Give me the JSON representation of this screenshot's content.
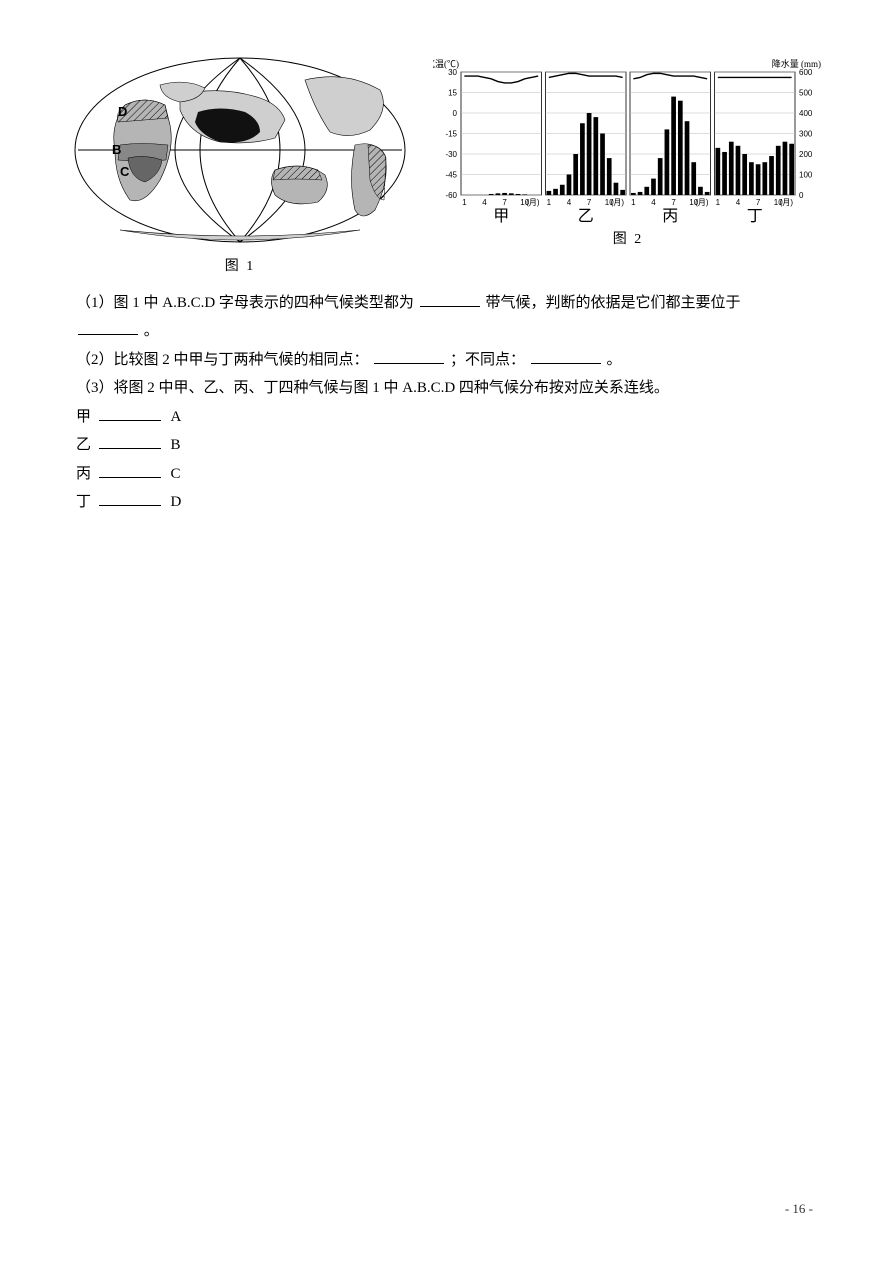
{
  "figure1": {
    "caption": "图 1",
    "labels": {
      "D": "D",
      "B": "B",
      "C": "C"
    }
  },
  "figure2": {
    "caption": "图 2",
    "axis_left_title": "气温(℃)",
    "axis_right_title": "降水量 (mm)",
    "y_temp_ticks": [
      30,
      15,
      0,
      -15,
      -30,
      -45,
      -60
    ],
    "y_temp_range": [
      -60,
      30
    ],
    "y_precip_ticks": [
      0,
      100,
      200,
      300,
      400,
      500,
      600
    ],
    "y_precip_range": [
      0,
      600
    ],
    "x_labels": [
      "1",
      "4",
      "7",
      "10",
      "(月)"
    ],
    "panels": [
      {
        "name": "甲",
        "temp": [
          27,
          27,
          27,
          26,
          25,
          23,
          22,
          22,
          23,
          25,
          26,
          27
        ],
        "precip": [
          0,
          0,
          0,
          0,
          5,
          8,
          10,
          8,
          5,
          3,
          0,
          0
        ]
      },
      {
        "name": "乙",
        "temp": [
          26,
          27,
          28,
          29,
          29,
          28,
          27,
          27,
          27,
          27,
          27,
          26
        ],
        "precip": [
          20,
          30,
          50,
          100,
          200,
          350,
          400,
          380,
          300,
          180,
          60,
          25
        ]
      },
      {
        "name": "丙",
        "temp": [
          25,
          26,
          28,
          29,
          29,
          28,
          27,
          27,
          27,
          27,
          26,
          25
        ],
        "precip": [
          10,
          15,
          40,
          80,
          180,
          320,
          480,
          460,
          360,
          160,
          40,
          15
        ]
      },
      {
        "name": "丁",
        "temp": [
          26,
          26,
          26,
          26,
          26,
          26,
          26,
          26,
          26,
          26,
          26,
          26
        ],
        "precip": [
          230,
          210,
          260,
          240,
          200,
          160,
          150,
          160,
          190,
          240,
          260,
          250
        ]
      }
    ],
    "panel_colors": {
      "bar": "#000000",
      "temp_line": "#000000",
      "axis": "#000000",
      "bg": "#ffffff"
    }
  },
  "questions": {
    "q1_a": "（1）图 1 中 A.B.C.D 字母表示的四种气候类型都为",
    "q1_b": "带气候，判断的依据是它们都主要位于",
    "q1_tail": "。",
    "q2_a": "（2）比较图 2 中甲与丁两种气候的相同点：",
    "q2_mid": "；不同点：",
    "q2_tail": "。",
    "q3": "（3）将图 2 中甲、乙、丙、丁四种气候与图 1 中 A.B.C.D 四种气候分布按对应关系连线。",
    "match": [
      {
        "left": "甲",
        "right": "A"
      },
      {
        "left": "乙",
        "right": "B"
      },
      {
        "left": "丙",
        "right": "C"
      },
      {
        "left": "丁",
        "right": "D"
      }
    ]
  },
  "page_number": "- 16 -"
}
